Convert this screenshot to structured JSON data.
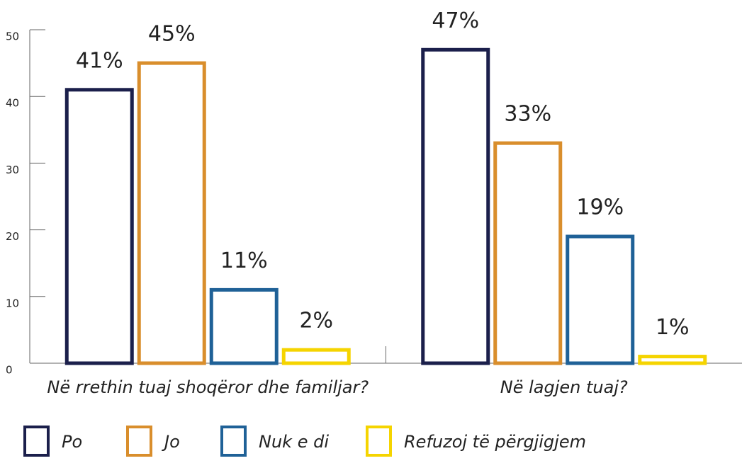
{
  "chart_data": {
    "type": "bar",
    "categories": [
      "Në rrethin tuaj shoqëror dhe familjar?",
      "Në lagjen tuaj?"
    ],
    "series": [
      {
        "name": "Po",
        "color": "#1b1f4b",
        "values": [
          41,
          47
        ],
        "value_labels": [
          "41%",
          "47%"
        ]
      },
      {
        "name": "Jo",
        "color": "#d98e2c",
        "values": [
          45,
          33
        ],
        "value_labels": [
          "45%",
          "33%"
        ]
      },
      {
        "name": "Nuk e di",
        "color": "#1f6197",
        "values": [
          11,
          19
        ],
        "value_labels": [
          "11%",
          "19%"
        ]
      },
      {
        "name": "Refuzoj të përgjigjem",
        "color": "#f5d400",
        "values": [
          2,
          1
        ],
        "value_labels": [
          "2%",
          "1%"
        ]
      }
    ],
    "ylim": [
      0,
      50
    ],
    "yticks": [
      0,
      10,
      20,
      30,
      40,
      50
    ]
  }
}
